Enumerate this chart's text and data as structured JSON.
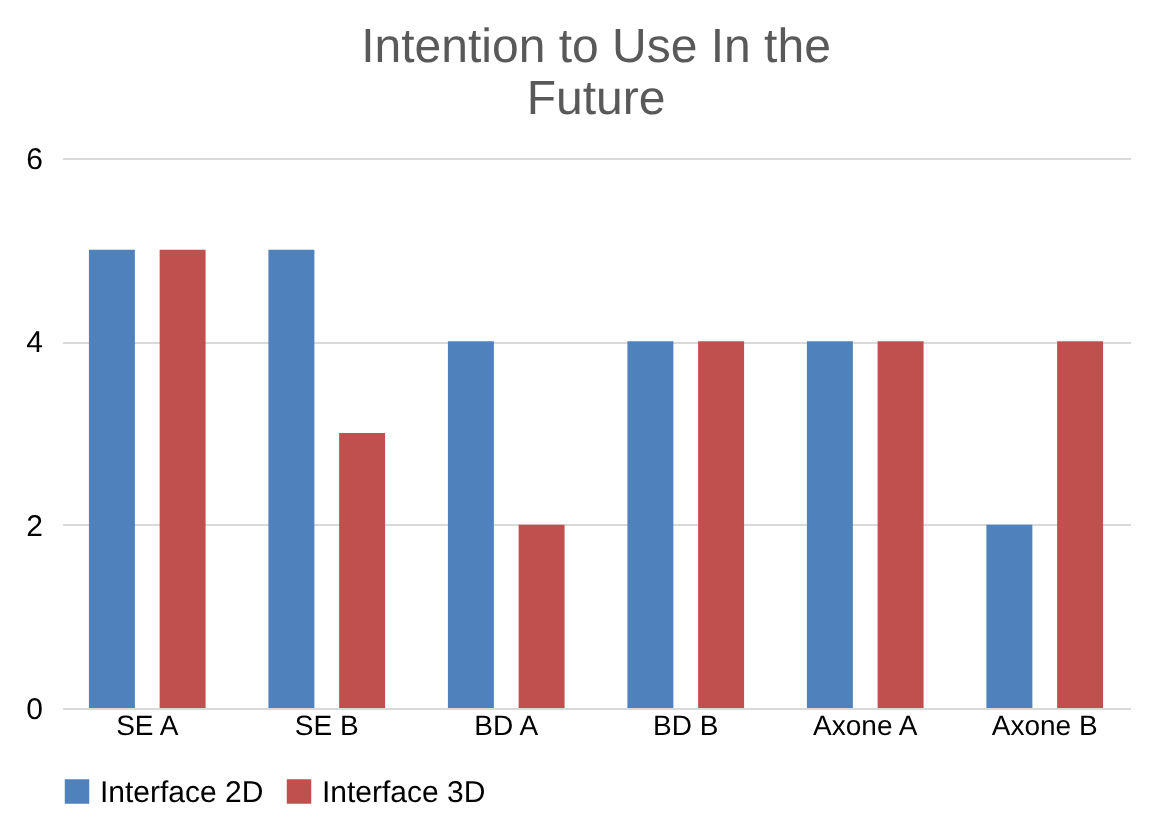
{
  "chart_data": {
    "type": "bar",
    "title": "Intention to Use In the Future",
    "categories": [
      "SE A",
      "SE B",
      "BD A",
      "BD B",
      "Axone A",
      "Axone B"
    ],
    "series": [
      {
        "name": "Interface 2D",
        "color": "#4f81bd",
        "values": [
          5,
          5,
          4,
          4,
          4,
          2
        ]
      },
      {
        "name": "Interface 3D",
        "color": "#c0504d",
        "values": [
          5,
          3,
          2,
          4,
          4,
          4
        ]
      }
    ],
    "ylim": [
      0,
      6
    ],
    "yticks": [
      0,
      2,
      4,
      6
    ],
    "grid": "y",
    "legend": "bottom"
  }
}
